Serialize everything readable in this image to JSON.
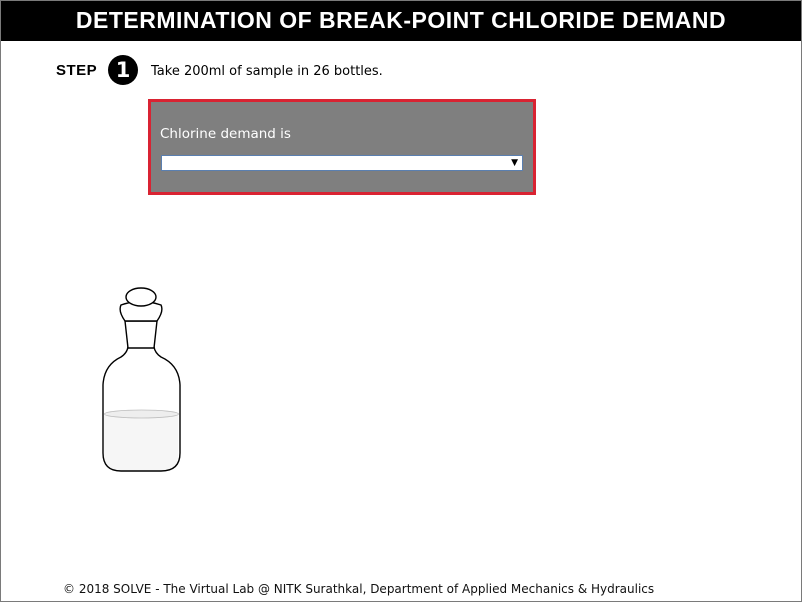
{
  "header": {
    "title": "DETERMINATION OF BREAK-POINT CHLORIDE DEMAND"
  },
  "step": {
    "label": "STEP",
    "number": "1",
    "instruction": "Take 200ml of sample in 26 bottles."
  },
  "question": {
    "label": "Chlorine demand is",
    "selected_value": "",
    "border_color": "#d92332",
    "background_color": "#7f7f7f"
  },
  "icons": {
    "bottle": "reagent-bottle-icon",
    "dropdown_arrow": "chevron-down-icon"
  },
  "footer": {
    "copyright": "© 2018 SOLVE - The Virtual Lab @ NITK Surathkal, Department of Applied Mechanics & Hydraulics"
  }
}
